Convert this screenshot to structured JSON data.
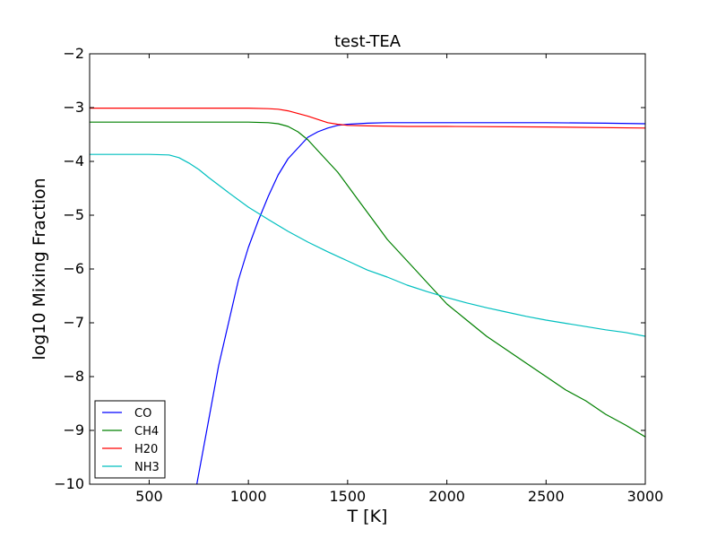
{
  "chart_data": {
    "type": "line",
    "title": "test-TEA",
    "xlabel": "T [K]",
    "ylabel": "log10 Mixing Fraction",
    "xlim": [
      200,
      3000
    ],
    "ylim": [
      -10,
      -2
    ],
    "xticks": [
      500,
      1000,
      1500,
      2000,
      2500,
      3000
    ],
    "yticks": [
      -10,
      -9,
      -8,
      -7,
      -6,
      -5,
      -4,
      -3,
      -2
    ],
    "xtick_labels": [
      "500",
      "1000",
      "1500",
      "2000",
      "2500",
      "3000"
    ],
    "ytick_labels": [
      "−10",
      "−9",
      "−8",
      "−7",
      "−6",
      "−5",
      "−4",
      "−3",
      "−2"
    ],
    "grid": false,
    "legend_position": "lower-left",
    "series": [
      {
        "name": "CO",
        "color": "#0000ff",
        "x": [
          740,
          800,
          850,
          900,
          950,
          1000,
          1050,
          1100,
          1150,
          1200,
          1250,
          1300,
          1350,
          1400,
          1450,
          1500,
          1600,
          1700,
          1800,
          2000,
          2200,
          2500,
          2800,
          3000
        ],
        "y": [
          -10.0,
          -8.8,
          -7.8,
          -7.0,
          -6.2,
          -5.6,
          -5.1,
          -4.65,
          -4.25,
          -3.95,
          -3.75,
          -3.55,
          -3.45,
          -3.38,
          -3.33,
          -3.31,
          -3.29,
          -3.28,
          -3.28,
          -3.28,
          -3.28,
          -3.28,
          -3.29,
          -3.3
        ]
      },
      {
        "name": "CH4",
        "color": "#008000",
        "x": [
          200,
          500,
          800,
          1000,
          1100,
          1150,
          1200,
          1250,
          1300,
          1350,
          1400,
          1450,
          1500,
          1550,
          1600,
          1650,
          1700,
          1750,
          1800,
          1850,
          1900,
          1950,
          2000,
          2100,
          2200,
          2300,
          2400,
          2500,
          2600,
          2700,
          2800,
          2900,
          3000
        ],
        "y": [
          -3.27,
          -3.27,
          -3.27,
          -3.27,
          -3.28,
          -3.3,
          -3.35,
          -3.45,
          -3.6,
          -3.8,
          -4.0,
          -4.2,
          -4.45,
          -4.7,
          -4.95,
          -5.2,
          -5.45,
          -5.65,
          -5.85,
          -6.05,
          -6.25,
          -6.45,
          -6.65,
          -6.95,
          -7.25,
          -7.5,
          -7.75,
          -8.0,
          -8.25,
          -8.45,
          -8.7,
          -8.9,
          -9.12
        ]
      },
      {
        "name": "H20",
        "color": "#ff0000",
        "x": [
          200,
          500,
          800,
          1000,
          1100,
          1150,
          1200,
          1250,
          1300,
          1350,
          1400,
          1450,
          1500,
          1600,
          1800,
          2000,
          2500,
          3000
        ],
        "y": [
          -3.01,
          -3.01,
          -3.01,
          -3.01,
          -3.02,
          -3.03,
          -3.06,
          -3.11,
          -3.16,
          -3.22,
          -3.28,
          -3.31,
          -3.33,
          -3.34,
          -3.35,
          -3.35,
          -3.36,
          -3.38
        ]
      },
      {
        "name": "NH3",
        "color": "#00bfbf",
        "x": [
          200,
          500,
          600,
          650,
          700,
          750,
          800,
          900,
          1000,
          1100,
          1200,
          1300,
          1400,
          1500,
          1600,
          1700,
          1800,
          1900,
          2000,
          2100,
          2200,
          2300,
          2400,
          2500,
          2600,
          2700,
          2800,
          2900,
          3000
        ],
        "y": [
          -3.87,
          -3.87,
          -3.88,
          -3.93,
          -4.03,
          -4.15,
          -4.3,
          -4.58,
          -4.85,
          -5.08,
          -5.3,
          -5.5,
          -5.68,
          -5.85,
          -6.02,
          -6.15,
          -6.3,
          -6.42,
          -6.53,
          -6.63,
          -6.72,
          -6.8,
          -6.88,
          -6.95,
          -7.01,
          -7.07,
          -7.13,
          -7.18,
          -7.25
        ]
      }
    ]
  }
}
